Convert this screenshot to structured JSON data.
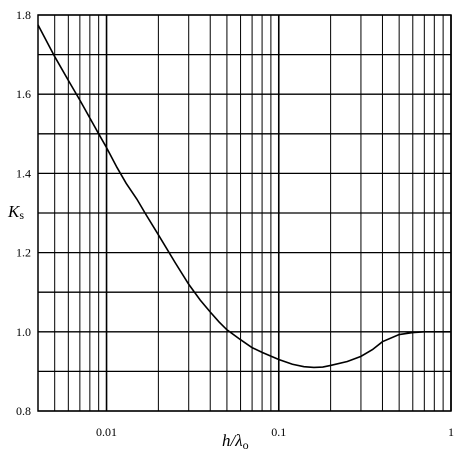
{
  "chart_data": {
    "type": "line",
    "title": "",
    "xlabel": {
      "main": "h/λ",
      "sub": "o"
    },
    "ylabel": {
      "main": "K",
      "sub": "s"
    },
    "x_scale": "log",
    "xlim": [
      0.004,
      1.0
    ],
    "ylim": [
      0.8,
      1.8
    ],
    "grid": true,
    "x_ticks": [
      {
        "value": 0.01,
        "label": "0.01"
      },
      {
        "value": 0.1,
        "label": "0.1"
      },
      {
        "value": 1,
        "label": "1"
      }
    ],
    "y_ticks": [
      {
        "value": 0.8,
        "label": "0.8"
      },
      {
        "value": 1.0,
        "label": "1.0"
      },
      {
        "value": 1.2,
        "label": "1.2"
      },
      {
        "value": 1.4,
        "label": "1.4"
      },
      {
        "value": 1.6,
        "label": "1.6"
      },
      {
        "value": 1.8,
        "label": "1.8"
      }
    ],
    "x_grid_values": [
      0.004,
      0.005,
      0.006,
      0.007,
      0.008,
      0.009,
      0.01,
      0.02,
      0.03,
      0.04,
      0.05,
      0.06,
      0.07,
      0.08,
      0.09,
      0.1,
      0.2,
      0.3,
      0.4,
      0.5,
      0.6,
      0.7,
      0.8,
      0.9,
      1.0
    ],
    "y_grid_values": [
      0.8,
      0.9,
      1.0,
      1.1,
      1.2,
      1.3,
      1.4,
      1.5,
      1.6,
      1.7,
      1.8
    ],
    "series": [
      {
        "x": [
          0.004,
          0.005,
          0.006,
          0.007,
          0.008,
          0.009,
          0.01,
          0.0115,
          0.013,
          0.015,
          0.017,
          0.02,
          0.025,
          0.03,
          0.035,
          0.04,
          0.045,
          0.05,
          0.06,
          0.07,
          0.08,
          0.1,
          0.12,
          0.14,
          0.16,
          0.18,
          0.2,
          0.25,
          0.3,
          0.35,
          0.4,
          0.5,
          0.6,
          0.7,
          0.8,
          1.0
        ],
        "y": [
          1.775,
          1.695,
          1.635,
          1.585,
          1.54,
          1.5,
          1.465,
          1.415,
          1.375,
          1.335,
          1.295,
          1.245,
          1.175,
          1.12,
          1.08,
          1.05,
          1.025,
          1.005,
          0.98,
          0.96,
          0.948,
          0.93,
          0.918,
          0.912,
          0.91,
          0.911,
          0.915,
          0.925,
          0.938,
          0.955,
          0.975,
          0.993,
          0.998,
          1.0,
          1.0,
          1.0
        ]
      }
    ]
  },
  "colors": {
    "line": "#000000",
    "grid": "#000000",
    "background": "#ffffff"
  }
}
